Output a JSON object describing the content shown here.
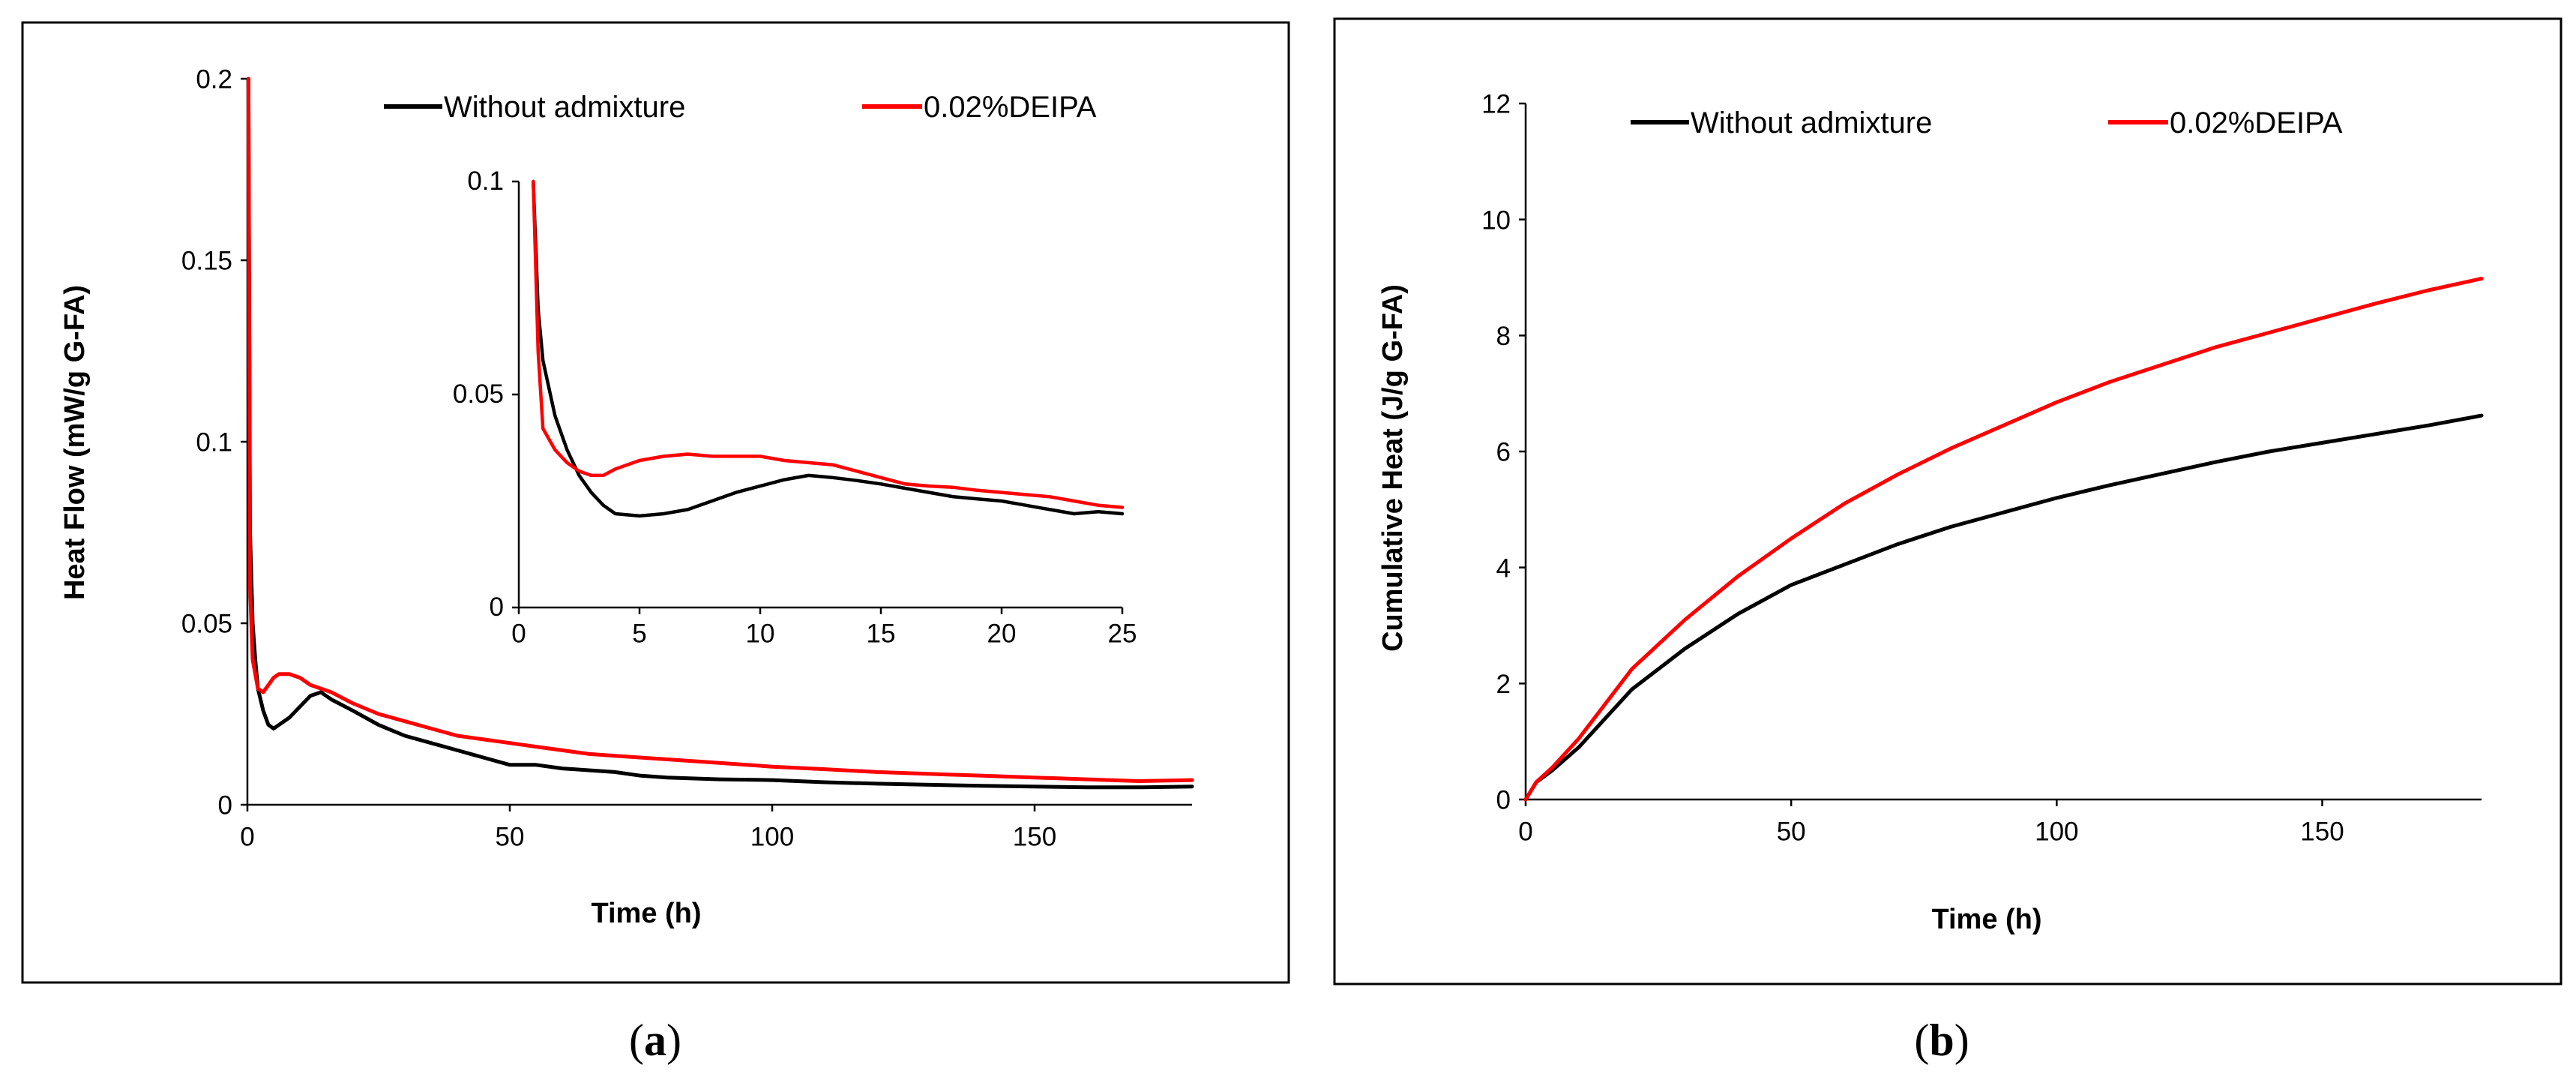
{
  "chart_data": [
    {
      "id": "a",
      "type": "line",
      "caption": {
        "open": "(",
        "letter": "a",
        "close": ")"
      },
      "xlabel": "Time (h)",
      "ylabel": "Heat Flow (mW/g G-FA)",
      "xlim": [
        0,
        180
      ],
      "ylim": [
        0,
        0.2
      ],
      "xticks": [
        0,
        50,
        100,
        150
      ],
      "xtick_labels": [
        "0",
        "50",
        "100",
        "150"
      ],
      "yticks": [
        0,
        0.05,
        0.1,
        0.15,
        0.2
      ],
      "ytick_labels": [
        "0",
        "0.05",
        "0.1",
        "0.15",
        "0.2"
      ],
      "grid": false,
      "legend": "top-right",
      "series": [
        {
          "name": "Without admixture",
          "color": "#000000",
          "x": [
            0.2,
            0.5,
            1,
            1.5,
            2,
            3,
            4,
            5,
            6,
            8,
            10,
            12,
            14,
            16,
            20,
            25,
            30,
            35,
            40,
            45,
            50,
            55,
            60,
            65,
            70,
            75,
            80,
            90,
            100,
            110,
            120,
            130,
            140,
            150,
            160,
            170,
            180
          ],
          "y": [
            0.2,
            0.075,
            0.05,
            0.04,
            0.032,
            0.026,
            0.022,
            0.021,
            0.022,
            0.024,
            0.027,
            0.03,
            0.031,
            0.029,
            0.026,
            0.022,
            0.019,
            0.017,
            0.015,
            0.013,
            0.011,
            0.011,
            0.01,
            0.0095,
            0.009,
            0.008,
            0.0075,
            0.007,
            0.0068,
            0.0062,
            0.0058,
            0.0055,
            0.0052,
            0.005,
            0.0048,
            0.0048,
            0.005
          ]
        },
        {
          "name": "0.02%DEIPA",
          "color": "#ff0000",
          "x": [
            0.2,
            0.5,
            1,
            1.5,
            2,
            3,
            4,
            5,
            6,
            8,
            10,
            12,
            14,
            16,
            20,
            25,
            30,
            35,
            40,
            45,
            50,
            55,
            60,
            65,
            70,
            75,
            80,
            90,
            100,
            110,
            120,
            130,
            140,
            150,
            160,
            170,
            180
          ],
          "y": [
            0.2,
            0.06,
            0.04,
            0.036,
            0.032,
            0.031,
            0.033,
            0.035,
            0.036,
            0.036,
            0.035,
            0.033,
            0.032,
            0.031,
            0.028,
            0.025,
            0.023,
            0.021,
            0.019,
            0.018,
            0.017,
            0.016,
            0.015,
            0.014,
            0.0135,
            0.013,
            0.0125,
            0.0115,
            0.0105,
            0.0098,
            0.009,
            0.0085,
            0.008,
            0.0075,
            0.007,
            0.0065,
            0.0068
          ]
        }
      ],
      "inset": {
        "xlim": [
          0,
          25
        ],
        "ylim": [
          0,
          0.1
        ],
        "xticks": [
          0,
          5,
          10,
          15,
          20,
          25
        ],
        "xtick_labels": [
          "0",
          "5",
          "10",
          "15",
          "20",
          "25"
        ],
        "yticks": [
          0,
          0.05,
          0.1
        ],
        "ytick_labels": [
          "0",
          "0.05",
          "0.1"
        ],
        "series": [
          {
            "name": "Without admixture",
            "color": "#000000",
            "x": [
              0.6,
              0.8,
              1,
              1.5,
              2,
              2.5,
              3,
              3.5,
              4,
              5,
              6,
              7,
              8,
              9,
              10,
              11,
              12,
              13,
              14,
              15,
              16,
              17,
              18,
              19,
              20,
              21,
              22,
              23,
              24,
              25
            ],
            "y": [
              0.1,
              0.07,
              0.058,
              0.045,
              0.037,
              0.031,
              0.027,
              0.024,
              0.022,
              0.0215,
              0.022,
              0.023,
              0.025,
              0.027,
              0.0285,
              0.03,
              0.031,
              0.0305,
              0.0298,
              0.029,
              0.028,
              0.027,
              0.026,
              0.0255,
              0.025,
              0.024,
              0.023,
              0.022,
              0.0225,
              0.022
            ]
          },
          {
            "name": "0.02%DEIPA",
            "color": "#ff0000",
            "x": [
              0.6,
              0.8,
              1,
              1.5,
              2,
              2.5,
              3,
              3.5,
              4,
              5,
              6,
              7,
              8,
              9,
              10,
              11,
              12,
              13,
              14,
              15,
              16,
              17,
              18,
              19,
              20,
              21,
              22,
              23,
              24,
              25
            ],
            "y": [
              0.1,
              0.06,
              0.042,
              0.037,
              0.034,
              0.032,
              0.031,
              0.031,
              0.0325,
              0.0345,
              0.0355,
              0.036,
              0.0355,
              0.0355,
              0.0355,
              0.0345,
              0.034,
              0.0335,
              0.032,
              0.0305,
              0.029,
              0.0285,
              0.0282,
              0.0275,
              0.027,
              0.0265,
              0.026,
              0.025,
              0.024,
              0.0235
            ]
          }
        ]
      }
    },
    {
      "id": "b",
      "type": "line",
      "caption": {
        "open": "(",
        "letter": "b",
        "close": ")"
      },
      "xlabel": "Time (h)",
      "ylabel": "Cumulative Heat (J/g G-FA)",
      "xlim": [
        0,
        180
      ],
      "ylim": [
        0,
        12
      ],
      "xticks": [
        0,
        50,
        100,
        150
      ],
      "xtick_labels": [
        "0",
        "50",
        "100",
        "150"
      ],
      "yticks": [
        0,
        2,
        4,
        6,
        8,
        10,
        12
      ],
      "ytick_labels": [
        "0",
        "2",
        "4",
        "6",
        "8",
        "10",
        "12"
      ],
      "grid": false,
      "legend": "top",
      "series": [
        {
          "name": "Without admixture",
          "color": "#000000",
          "x": [
            0,
            2,
            5,
            10,
            15,
            20,
            30,
            40,
            50,
            60,
            70,
            80,
            90,
            100,
            110,
            120,
            130,
            140,
            150,
            160,
            170,
            180
          ],
          "y": [
            0,
            0.3,
            0.5,
            0.9,
            1.4,
            1.9,
            2.6,
            3.2,
            3.7,
            4.05,
            4.4,
            4.7,
            4.95,
            5.2,
            5.42,
            5.62,
            5.82,
            6.0,
            6.15,
            6.3,
            6.45,
            6.62
          ]
        },
        {
          "name": "0.02%DEIPA",
          "color": "#ff0000",
          "x": [
            0,
            2,
            5,
            10,
            15,
            20,
            30,
            40,
            50,
            60,
            70,
            80,
            90,
            100,
            110,
            120,
            130,
            140,
            150,
            160,
            170,
            180
          ],
          "y": [
            0,
            0.3,
            0.55,
            1.05,
            1.65,
            2.25,
            3.1,
            3.85,
            4.5,
            5.1,
            5.6,
            6.05,
            6.45,
            6.85,
            7.2,
            7.5,
            7.8,
            8.05,
            8.3,
            8.55,
            8.78,
            8.98
          ]
        }
      ]
    }
  ]
}
